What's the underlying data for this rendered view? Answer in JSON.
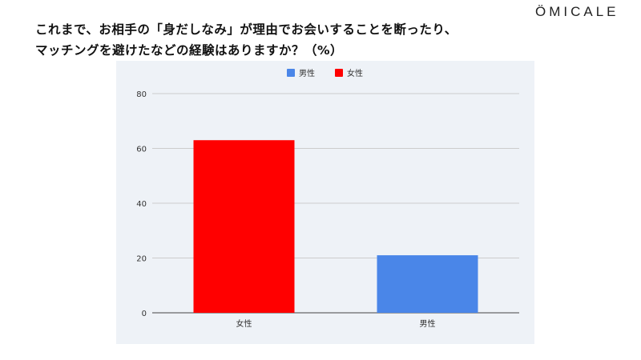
{
  "title_lines": [
    "これまで、お相手の「身だしなみ」が理由でお会いすることを断ったり、",
    "マッチングを避けたなどの経験はありますか？（%）"
  ],
  "logo": "ÖMICALE",
  "chart_data": {
    "type": "bar",
    "categories": [
      "女性",
      "男性"
    ],
    "values": [
      63,
      21
    ],
    "colors": [
      "#ff0000",
      "#4a86e8"
    ],
    "legend": [
      {
        "name": "男性",
        "color": "#4a86e8"
      },
      {
        "name": "女性",
        "color": "#ff0000"
      }
    ],
    "legend_position": "top",
    "ylim": [
      0,
      80
    ],
    "yticks": [
      0,
      20,
      40,
      60,
      80
    ],
    "grid": true
  }
}
